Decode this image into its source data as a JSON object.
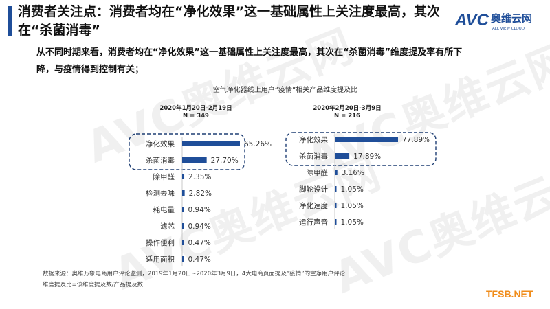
{
  "slide": {
    "title": "消费者关注点：消费者均在“净化效果”这一基础属性上关注度最高，其次在“杀菌消毒”",
    "subtitle": "从不同时期来看，消费者均在“净化效果”这一基础属性上关注度最高，其次在“杀菌消毒”维度提及率有所下降，与疫情得到控制有关；",
    "source_line1": "数据来源：奥维万象电商用户评论监测，2019年1月20日~2020年3月9日，4大电商页面提及“疫情”的空净用户评论",
    "source_line2": "维度提及比=该维度提及数/产品提及数",
    "brand_logo_text": "奥维云网",
    "brand_logo_sub": "ALL VIEW CLOUD",
    "brand_logo_mark": "AVC",
    "site_mark": "TFSB.NET",
    "accent_color": "#1f4e99",
    "arrow_color": "#f0931e"
  },
  "chart_data": [
    {
      "type": "bar",
      "orientation": "horizontal",
      "title": "空气净化器线上用户“疫情”相关产品维度提及比",
      "panel_title": "2020年1月20日-2月19日",
      "panel_n": "N = 349",
      "categories": [
        "净化效果",
        "杀菌消毒",
        "除甲醛",
        "检测去味",
        "耗电量",
        "滤芯",
        "操作便利",
        "适用面积"
      ],
      "values": [
        65.26,
        27.7,
        2.35,
        2.82,
        0.94,
        0.94,
        0.47,
        0.47
      ],
      "labels": [
        "65.26%",
        "27.70%",
        "2.35%",
        "2.82%",
        "0.94%",
        "0.94%",
        "0.47%",
        "0.47%"
      ],
      "highlighted": [
        "净化效果",
        "杀菌消毒"
      ],
      "color": "#1f4e99"
    },
    {
      "type": "bar",
      "orientation": "horizontal",
      "panel_title": "2020年2月20日-3月9日",
      "panel_n": "N = 216",
      "categories": [
        "净化效果",
        "杀菌消毒",
        "除甲醛",
        "脚轮设计",
        "净化速度",
        "运行声音"
      ],
      "values": [
        77.89,
        17.89,
        3.16,
        1.05,
        1.05,
        1.05
      ],
      "labels": [
        "77.89%",
        "17.89%",
        "3.16%",
        "1.05%",
        "1.05%",
        "1.05%"
      ],
      "highlighted": [
        "净化效果",
        "杀菌消毒"
      ],
      "color": "#1f4e99"
    }
  ]
}
